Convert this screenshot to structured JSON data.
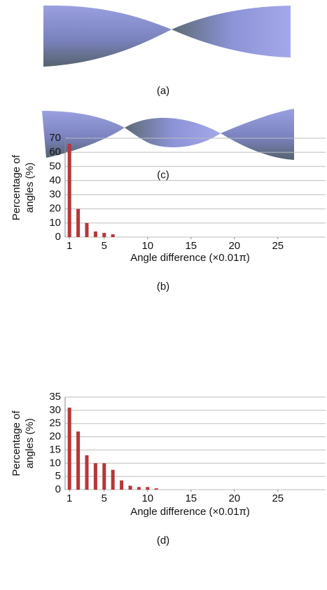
{
  "surface_captions": [
    "(a)",
    "(c)"
  ],
  "chart_data": [
    {
      "type": "bar",
      "caption": "(b)",
      "ylabel": [
        "Percentage of",
        "angles (%)"
      ],
      "xlabel": "Angle difference (×0.01π)",
      "x": [
        1,
        2,
        3,
        4,
        5,
        6
      ],
      "values": [
        66,
        20,
        10,
        4,
        3,
        2
      ],
      "color": "#b5373a",
      "xlim": [
        0.5,
        30.5
      ],
      "xticks": [
        1,
        5,
        10,
        15,
        20,
        25
      ],
      "ylim": [
        0,
        70
      ],
      "yticks": [
        0,
        10,
        20,
        30,
        40,
        50,
        60,
        70
      ],
      "grid": true
    },
    {
      "type": "bar",
      "caption": "(d)",
      "ylabel": [
        "Percentage of",
        "angles (%)"
      ],
      "xlabel": "Angle difference (×0.01π)",
      "x": [
        1,
        2,
        3,
        4,
        5,
        6,
        7,
        8,
        9,
        10,
        11
      ],
      "values": [
        31,
        22,
        13,
        10,
        10,
        7.5,
        3.5,
        1.5,
        1,
        1,
        0.5
      ],
      "color": "#b5373a",
      "xlim": [
        0.5,
        30.5
      ],
      "xticks": [
        1,
        5,
        10,
        15,
        20,
        25
      ],
      "ylim": [
        0,
        35
      ],
      "yticks": [
        0,
        5,
        10,
        15,
        20,
        25,
        30,
        35
      ],
      "grid": true
    }
  ]
}
